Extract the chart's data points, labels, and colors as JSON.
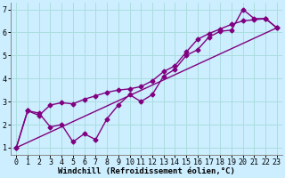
{
  "line1_x": [
    0,
    1,
    2,
    3,
    4,
    5,
    6,
    7,
    8,
    9,
    10,
    11,
    12,
    13,
    14,
    15,
    16,
    17,
    18,
    19,
    20,
    21,
    22,
    23
  ],
  "line1_y": [
    1.0,
    2.6,
    2.5,
    1.9,
    2.0,
    1.25,
    1.6,
    1.35,
    2.25,
    2.85,
    3.3,
    3.0,
    3.3,
    4.1,
    4.4,
    5.0,
    5.25,
    5.8,
    6.05,
    6.1,
    7.0,
    6.6,
    6.6,
    6.2
  ],
  "line2_x": [
    0,
    1,
    2,
    3,
    4,
    5,
    6,
    7,
    8,
    9,
    10,
    11,
    12,
    13,
    14,
    15,
    16,
    17,
    18,
    19,
    20,
    21,
    22,
    23
  ],
  "line2_y": [
    1.0,
    2.6,
    2.4,
    2.85,
    2.95,
    2.9,
    3.1,
    3.25,
    3.4,
    3.5,
    3.55,
    3.65,
    3.9,
    4.3,
    4.55,
    5.15,
    5.7,
    5.95,
    6.15,
    6.35,
    6.5,
    6.55,
    6.6,
    6.2
  ],
  "line3_x": [
    0,
    23
  ],
  "line3_y": [
    1.0,
    6.2
  ],
  "color": "#800080",
  "bg_color": "#cceeff",
  "xlim": [
    -0.5,
    23.5
  ],
  "ylim": [
    0.7,
    7.3
  ],
  "xticks": [
    0,
    1,
    2,
    3,
    4,
    5,
    6,
    7,
    8,
    9,
    10,
    11,
    12,
    13,
    14,
    15,
    16,
    17,
    18,
    19,
    20,
    21,
    22,
    23
  ],
  "yticks": [
    1,
    2,
    3,
    4,
    5,
    6,
    7
  ],
  "grid_color": "#aadddd",
  "marker": "D",
  "markersize": 2.5,
  "linewidth": 1.0,
  "xlabel": "Windchill (Refroidissement éolien,°C)",
  "xlabel_fontsize": 6.5,
  "tick_fontsize": 6.0
}
